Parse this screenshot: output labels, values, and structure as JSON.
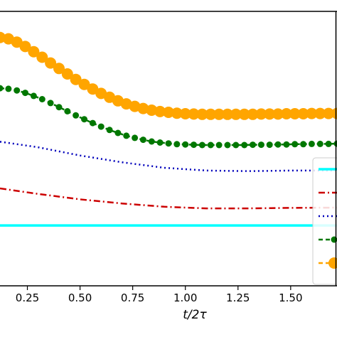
{
  "chart_data": {
    "type": "line",
    "xlabel": "t/2τ",
    "xlim": [
      0.12,
      1.72
    ],
    "ylim": [
      0,
      1
    ],
    "grid": false,
    "legend_position": "right",
    "x_tick_values": [
      0.25,
      0.5,
      0.75,
      1.0,
      1.25,
      1.5
    ],
    "x_tick_labels": [
      "0.25",
      "0.50",
      "0.75",
      "1.00",
      "1.25",
      "1.50"
    ],
    "series": [
      {
        "key": "cyan",
        "color": "#00FFFF",
        "style": "solid",
        "marker": "none",
        "points": [
          [
            0.12,
            0.22
          ],
          [
            1.72,
            0.22
          ]
        ]
      },
      {
        "key": "red",
        "color": "#CC0000",
        "style": "dashdot",
        "marker": "none",
        "points": [
          [
            0.12,
            0.355
          ],
          [
            0.3,
            0.335
          ],
          [
            0.5,
            0.315
          ],
          [
            0.7,
            0.3
          ],
          [
            0.9,
            0.288
          ],
          [
            1.1,
            0.282
          ],
          [
            1.3,
            0.282
          ],
          [
            1.5,
            0.284
          ],
          [
            1.72,
            0.285
          ]
        ]
      },
      {
        "key": "blue",
        "color": "#0000BB",
        "style": "dotted",
        "marker": "none",
        "points": [
          [
            0.12,
            0.525
          ],
          [
            0.3,
            0.505
          ],
          [
            0.5,
            0.475
          ],
          [
            0.7,
            0.45
          ],
          [
            0.9,
            0.43
          ],
          [
            1.1,
            0.42
          ],
          [
            1.3,
            0.418
          ],
          [
            1.5,
            0.42
          ],
          [
            1.72,
            0.42
          ]
        ]
      },
      {
        "key": "green",
        "color": "#007700",
        "style": "dashed",
        "marker": "circle",
        "markersize": 4.5,
        "x": [
          0.12,
          0.16,
          0.2,
          0.24,
          0.28,
          0.32,
          0.36,
          0.4,
          0.44,
          0.48,
          0.52,
          0.56,
          0.6,
          0.64,
          0.68,
          0.72,
          0.76,
          0.8,
          0.84,
          0.88,
          0.92,
          0.96,
          1.0,
          1.04,
          1.08,
          1.12,
          1.16,
          1.2,
          1.24,
          1.28,
          1.32,
          1.36,
          1.4,
          1.44,
          1.48,
          1.52,
          1.56,
          1.6,
          1.64,
          1.68,
          1.72
        ],
        "y": [
          0.72,
          0.718,
          0.712,
          0.703,
          0.692,
          0.68,
          0.666,
          0.651,
          0.636,
          0.621,
          0.607,
          0.593,
          0.58,
          0.568,
          0.557,
          0.547,
          0.539,
          0.532,
          0.526,
          0.522,
          0.519,
          0.516,
          0.515,
          0.514,
          0.513,
          0.513,
          0.513,
          0.513,
          0.513,
          0.513,
          0.514,
          0.514,
          0.514,
          0.515,
          0.515,
          0.516,
          0.516,
          0.517,
          0.517,
          0.517,
          0.518
        ]
      },
      {
        "key": "orange",
        "color": "#FFA500",
        "style": "dashed",
        "marker": "circle",
        "markersize": 8,
        "x": [
          0.12,
          0.16,
          0.2,
          0.24,
          0.28,
          0.32,
          0.36,
          0.4,
          0.44,
          0.48,
          0.52,
          0.56,
          0.6,
          0.64,
          0.68,
          0.72,
          0.76,
          0.8,
          0.84,
          0.88,
          0.92,
          0.96,
          1.0,
          1.04,
          1.08,
          1.12,
          1.16,
          1.2,
          1.24,
          1.28,
          1.32,
          1.36,
          1.4,
          1.44,
          1.48,
          1.52,
          1.56,
          1.6,
          1.64,
          1.68,
          1.72
        ],
        "y": [
          0.905,
          0.9,
          0.888,
          0.872,
          0.853,
          0.833,
          0.812,
          0.792,
          0.772,
          0.752,
          0.734,
          0.717,
          0.701,
          0.687,
          0.674,
          0.663,
          0.654,
          0.646,
          0.64,
          0.635,
          0.632,
          0.629,
          0.627,
          0.626,
          0.625,
          0.625,
          0.625,
          0.625,
          0.625,
          0.625,
          0.625,
          0.626,
          0.626,
          0.626,
          0.627,
          0.627,
          0.627,
          0.628,
          0.628,
          0.628,
          0.628
        ]
      }
    ],
    "legend": {
      "entries": [
        "cyan",
        "red",
        "blue",
        "green",
        "orange"
      ]
    }
  }
}
